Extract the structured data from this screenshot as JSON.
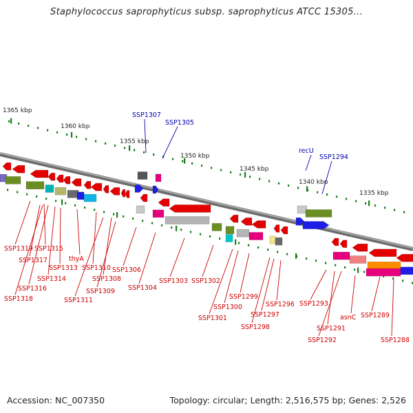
{
  "title": "Staphylococcus saprophyticus subsp. saprophyticus ATCC 15305...",
  "footer": {
    "accession": "Accession: NC_007350",
    "info": "Topology: circular; Length: 2,516,575 bp; Genes: 2,526"
  },
  "colors": {
    "backbone": "#8c8c8c",
    "ruler": "#1a7a1a",
    "label_forward": "#0000aa",
    "label_reverse": "#cc0000"
  },
  "ruler_labels": [
    "1365 kbp",
    "1360 kbp",
    "1355 kbp",
    "1350 kbp",
    "1345 kbp",
    "1340 kbp",
    "1335 kbp"
  ],
  "gene_labels_top": [
    "SSP1307",
    "SSP1305",
    "recU",
    "SSP1294"
  ],
  "gene_labels_bottom": [
    "SSP1319",
    "SSP1315",
    "SSP1317",
    "thyA",
    "SSP1313",
    "SSP1310",
    "SSP1306",
    "SSP1314",
    "SSP1308",
    "SSP1316",
    "SSP1309",
    "SSP1304",
    "SSP1303",
    "SSP1302",
    "SSP1318",
    "SSP1311",
    "SSP1299",
    "SSP1300",
    "SSP1296",
    "SSP1301",
    "SSP1297",
    "SSP1298",
    "SSP1293",
    "SSP1291",
    "asnC",
    "SSP1289",
    "SSP1292",
    "SSP1288"
  ]
}
